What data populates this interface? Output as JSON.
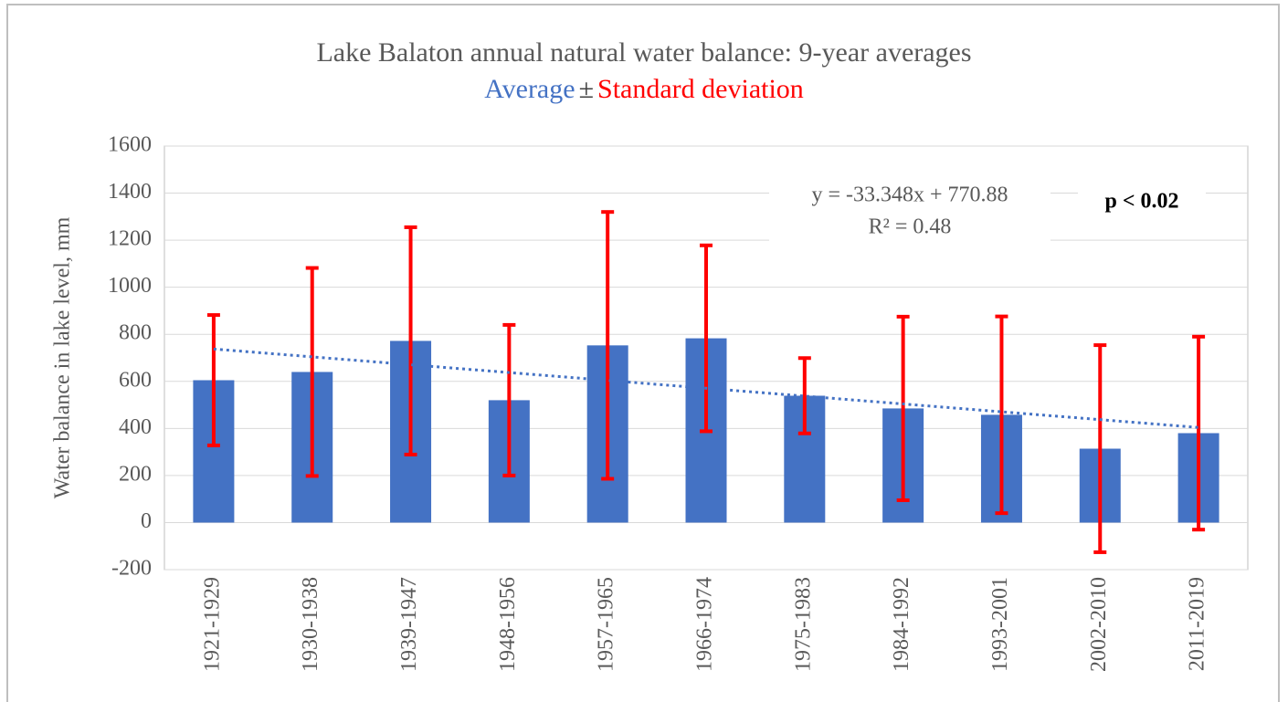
{
  "chart_data": {
    "type": "bar",
    "title": "Lake Balaton  annual  natural  water balance:  9-year averages",
    "subtitle_parts": [
      "Average",
      "±",
      "Standard deviation"
    ],
    "y_label": "Water balance in lake level,  mm",
    "categories": [
      "1921-1929",
      "1930-1938",
      "1939-1947",
      "1948-1956",
      "1957-1965",
      "1966-1974",
      "1975-1983",
      "1984-1992",
      "1993-2001",
      "2002-2010",
      "2011-2019"
    ],
    "series": [
      {
        "name": "Average",
        "color": "#4472c4",
        "values": [
          605,
          640,
          772,
          520,
          753,
          783,
          539,
          485,
          458,
          314,
          380
        ],
        "error_name": "Standard deviation",
        "error_color": "#ff0000",
        "errors": [
          277,
          442,
          483,
          320,
          567,
          395,
          160,
          390,
          418,
          440,
          410
        ]
      }
    ],
    "trendline": {
      "equation": "y = -33.348x  + 770.88",
      "r2": "R² = 0.48",
      "slope": -33.348,
      "intercept": 770.88,
      "color": "#4472c4"
    },
    "annotation": "p < 0.02",
    "ylim": [
      -200,
      1600
    ],
    "yticks": [
      -200,
      0,
      200,
      400,
      600,
      800,
      1000,
      1200,
      1400,
      1600
    ],
    "grid": true
  }
}
